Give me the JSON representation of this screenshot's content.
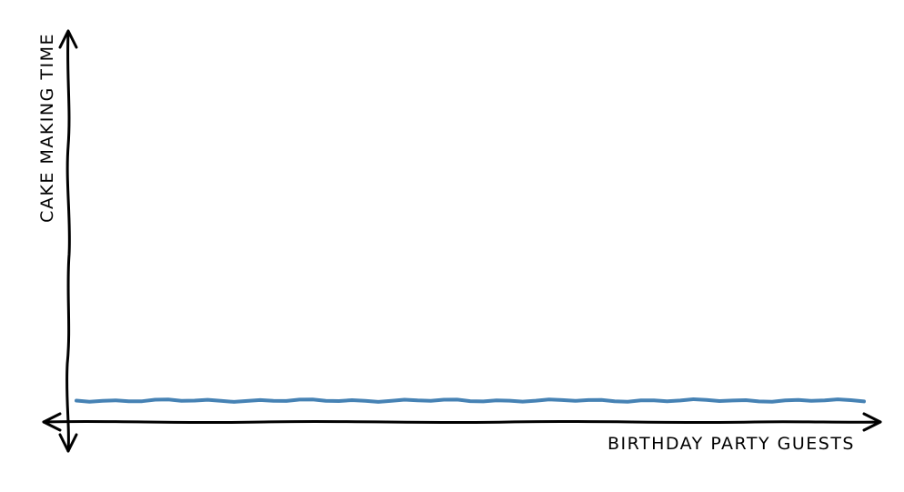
{
  "chart_data": {
    "type": "line",
    "title": "",
    "xlabel": "BIRTHDAY PARTY GUESTS",
    "ylabel": "CAKE MAKING TIME",
    "xlim": [
      0,
      10
    ],
    "ylim": [
      0,
      10
    ],
    "grid": false,
    "x": [
      0,
      1,
      2,
      3,
      4,
      5,
      6,
      7,
      8,
      9,
      10
    ],
    "series": [
      {
        "values": [
          0.55,
          0.55,
          0.55,
          0.55,
          0.55,
          0.55,
          0.55,
          0.55,
          0.55,
          0.55,
          0.55
        ],
        "color": "#4682b4"
      }
    ],
    "tick_labels_visible": false,
    "style": "xkcd hand-drawn",
    "axis_color": "#000000"
  }
}
